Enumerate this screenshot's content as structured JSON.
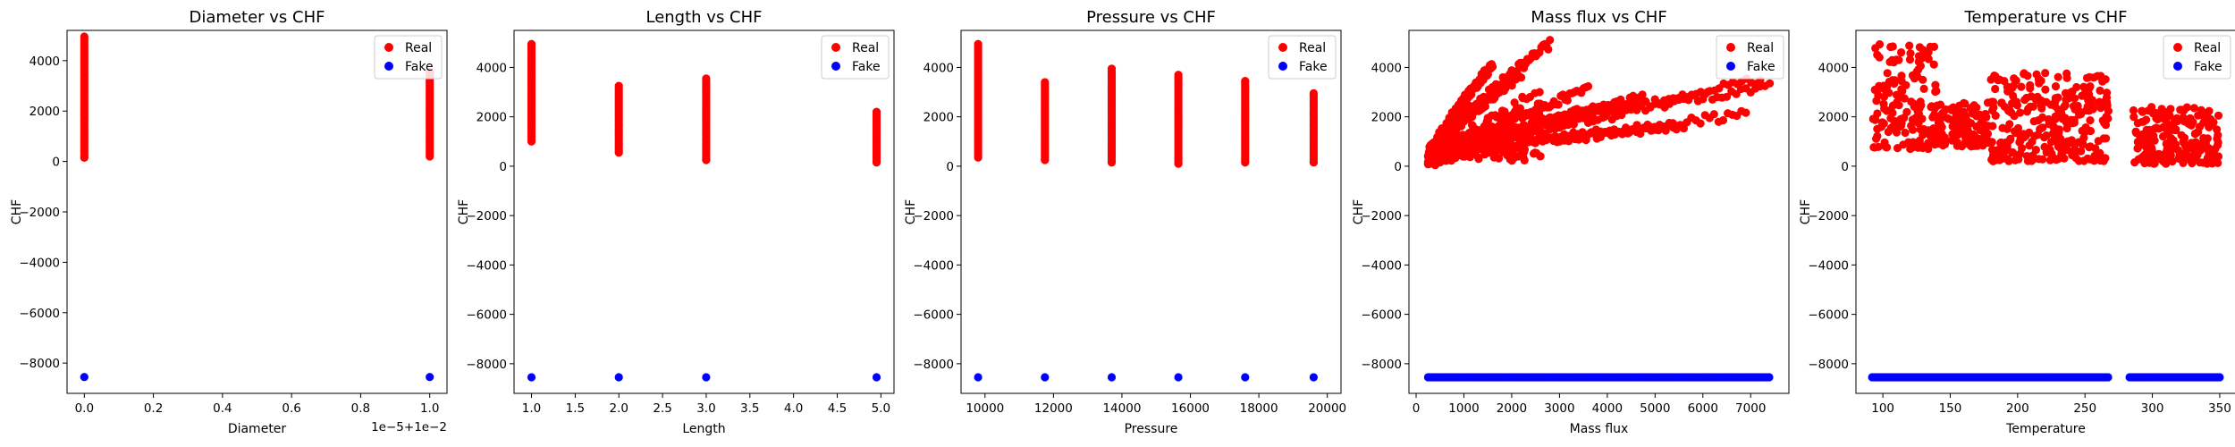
{
  "figure": {
    "background": "#ffffff"
  },
  "series_styles": [
    {
      "name": "Real",
      "color": "#ff0000"
    },
    {
      "name": "Fake",
      "color": "#0000ff"
    }
  ],
  "chart_data": [
    {
      "type": "scatter",
      "title": "Diameter vs CHF",
      "xlabel": "Diameter",
      "ylabel": "CHF",
      "axis_offset_text": "1e−5+1e−2",
      "xlim": [
        -0.05,
        1.05
      ],
      "ylim": [
        -9200,
        5200
      ],
      "xticks": [
        0.0,
        0.2,
        0.4,
        0.6,
        0.8,
        1.0
      ],
      "xtick_labels": [
        "0.0",
        "0.2",
        "0.4",
        "0.6",
        "0.8",
        "1.0"
      ],
      "yticks": [
        -8000,
        -6000,
        -4000,
        -2000,
        0,
        2000,
        4000
      ],
      "ytick_labels": [
        "−8000",
        "−6000",
        "−4000",
        "−2000",
        "0",
        "2000",
        "4000"
      ],
      "legend": {
        "position": "top-right",
        "entries": [
          "Real",
          "Fake"
        ]
      },
      "series": [
        {
          "name": "Real",
          "kind": "vbars",
          "bars": [
            {
              "x": 0.0,
              "ymin": 150,
              "ymax": 4950
            },
            {
              "x": 1.0,
              "ymin": 200,
              "ymax": 3550
            }
          ]
        },
        {
          "name": "Fake",
          "kind": "points",
          "points": [
            {
              "x": 0.0,
              "y": -8550
            },
            {
              "x": 1.0,
              "y": -8550
            }
          ]
        }
      ]
    },
    {
      "type": "scatter",
      "title": "Length vs CHF",
      "xlabel": "Length",
      "ylabel": "CHF",
      "xlim": [
        0.8,
        5.15
      ],
      "ylim": [
        -9200,
        5500
      ],
      "xticks": [
        1.0,
        1.5,
        2.0,
        2.5,
        3.0,
        3.5,
        4.0,
        4.5,
        5.0
      ],
      "xtick_labels": [
        "1.0",
        "1.5",
        "2.0",
        "2.5",
        "3.0",
        "3.5",
        "4.0",
        "4.5",
        "5.0"
      ],
      "yticks": [
        -8000,
        -6000,
        -4000,
        -2000,
        0,
        2000,
        4000
      ],
      "ytick_labels": [
        "−8000",
        "−6000",
        "−4000",
        "−2000",
        "0",
        "2000",
        "4000"
      ],
      "legend": {
        "position": "top-right",
        "entries": [
          "Real",
          "Fake"
        ]
      },
      "series": [
        {
          "name": "Real",
          "kind": "vbars",
          "bars": [
            {
              "x": 1.0,
              "ymin": 1000,
              "ymax": 4950
            },
            {
              "x": 2.0,
              "ymin": 550,
              "ymax": 3250
            },
            {
              "x": 3.0,
              "ymin": 250,
              "ymax": 3550
            },
            {
              "x": 4.95,
              "ymin": 150,
              "ymax": 2200
            }
          ]
        },
        {
          "name": "Fake",
          "kind": "points",
          "points": [
            {
              "x": 1.0,
              "y": -8550
            },
            {
              "x": 2.0,
              "y": -8550
            },
            {
              "x": 3.0,
              "y": -8550
            },
            {
              "x": 4.95,
              "y": -8550
            }
          ]
        }
      ]
    },
    {
      "type": "scatter",
      "title": "Pressure vs CHF",
      "xlabel": "Pressure",
      "ylabel": "CHF",
      "xlim": [
        9300,
        20400
      ],
      "ylim": [
        -9200,
        5500
      ],
      "xticks": [
        10000,
        12000,
        14000,
        16000,
        18000,
        20000
      ],
      "xtick_labels": [
        "10000",
        "12000",
        "14000",
        "16000",
        "18000",
        "20000"
      ],
      "yticks": [
        -8000,
        -6000,
        -4000,
        -2000,
        0,
        2000,
        4000
      ],
      "ytick_labels": [
        "−8000",
        "−6000",
        "−4000",
        "−2000",
        "0",
        "2000",
        "4000"
      ],
      "legend": {
        "position": "top-right",
        "entries": [
          "Real",
          "Fake"
        ]
      },
      "series": [
        {
          "name": "Real",
          "kind": "vbars",
          "bars": [
            {
              "x": 9800,
              "ymin": 350,
              "ymax": 4950
            },
            {
              "x": 11750,
              "ymin": 250,
              "ymax": 3400
            },
            {
              "x": 13700,
              "ymin": 150,
              "ymax": 3950
            },
            {
              "x": 15650,
              "ymin": 100,
              "ymax": 3700
            },
            {
              "x": 17600,
              "ymin": 150,
              "ymax": 3450
            },
            {
              "x": 19600,
              "ymin": 150,
              "ymax": 2950
            }
          ]
        },
        {
          "name": "Fake",
          "kind": "points",
          "points": [
            {
              "x": 9800,
              "y": -8550
            },
            {
              "x": 11750,
              "y": -8550
            },
            {
              "x": 13700,
              "y": -8550
            },
            {
              "x": 15650,
              "y": -8550
            },
            {
              "x": 17600,
              "y": -8550
            },
            {
              "x": 19600,
              "y": -8550
            }
          ]
        }
      ]
    },
    {
      "type": "scatter",
      "title": "Mass flux vs CHF",
      "xlabel": "Mass flux",
      "ylabel": "CHF",
      "xlim": [
        -150,
        7800
      ],
      "ylim": [
        -9200,
        5500
      ],
      "xticks": [
        0,
        1000,
        2000,
        3000,
        4000,
        5000,
        6000,
        7000
      ],
      "xtick_labels": [
        "0",
        "1000",
        "2000",
        "3000",
        "4000",
        "5000",
        "6000",
        "7000"
      ],
      "yticks": [
        -8000,
        -6000,
        -4000,
        -2000,
        0,
        2000,
        4000
      ],
      "ytick_labels": [
        "−8000",
        "−6000",
        "−4000",
        "−2000",
        "0",
        "2000",
        "4000"
      ],
      "legend": {
        "position": "top-right",
        "entries": [
          "Real",
          "Fake"
        ]
      },
      "series": [
        {
          "name": "Real",
          "kind": "fans",
          "fans": [
            {
              "x0": 250,
              "y0": 300,
              "x1": 2800,
              "y1": 4950
            },
            {
              "x0": 250,
              "y0": 250,
              "x1": 3600,
              "y1": 3100
            },
            {
              "x0": 250,
              "y0": 200,
              "x1": 4800,
              "y1": 2800
            },
            {
              "x0": 250,
              "y0": 150,
              "x1": 6900,
              "y1": 2100
            },
            {
              "x0": 400,
              "y0": 200,
              "x1": 7400,
              "y1": 3300
            },
            {
              "x0": 500,
              "y0": 200,
              "x1": 7200,
              "y1": 3500
            },
            {
              "x0": 300,
              "y0": 200,
              "x1": 5600,
              "y1": 1700
            },
            {
              "x0": 300,
              "y0": 250,
              "x1": 4200,
              "y1": 2550
            },
            {
              "x0": 250,
              "y0": 300,
              "x1": 1600,
              "y1": 4100
            },
            {
              "x0": 250,
              "y0": 250,
              "x1": 2200,
              "y1": 3700
            }
          ]
        },
        {
          "name": "Fake",
          "kind": "hband",
          "y": -8550,
          "xmin": 250,
          "xmax": 7400
        }
      ]
    },
    {
      "type": "scatter",
      "title": "Temperature vs CHF",
      "xlabel": "Temperature",
      "ylabel": "CHF",
      "xlim": [
        80,
        362
      ],
      "ylim": [
        -9200,
        5500
      ],
      "xticks": [
        100,
        150,
        200,
        250,
        300,
        350
      ],
      "xtick_labels": [
        "100",
        "150",
        "200",
        "250",
        "300",
        "350"
      ],
      "yticks": [
        -8000,
        -6000,
        -4000,
        -2000,
        0,
        2000,
        4000
      ],
      "ytick_labels": [
        "−8000",
        "−6000",
        "−4000",
        "−2000",
        "0",
        "2000",
        "4000"
      ],
      "legend": {
        "position": "top-right",
        "entries": [
          "Real",
          "Fake"
        ]
      },
      "series": [
        {
          "name": "Real",
          "kind": "clusters",
          "clusters": [
            {
              "xmin": 92,
              "xmax": 140,
              "ymin": 700,
              "ymax": 4950
            },
            {
              "xmin": 140,
              "xmax": 180,
              "ymin": 800,
              "ymax": 2600
            },
            {
              "xmin": 180,
              "xmax": 268,
              "ymin": 200,
              "ymax": 3800
            },
            {
              "xmin": 285,
              "xmax": 350,
              "ymin": 100,
              "ymax": 2400
            }
          ]
        },
        {
          "name": "Fake",
          "kind": "hband",
          "y": -8550,
          "xmin": 92,
          "xmax": 350,
          "gaps": [
            [
              268,
              282
            ]
          ]
        }
      ]
    }
  ]
}
